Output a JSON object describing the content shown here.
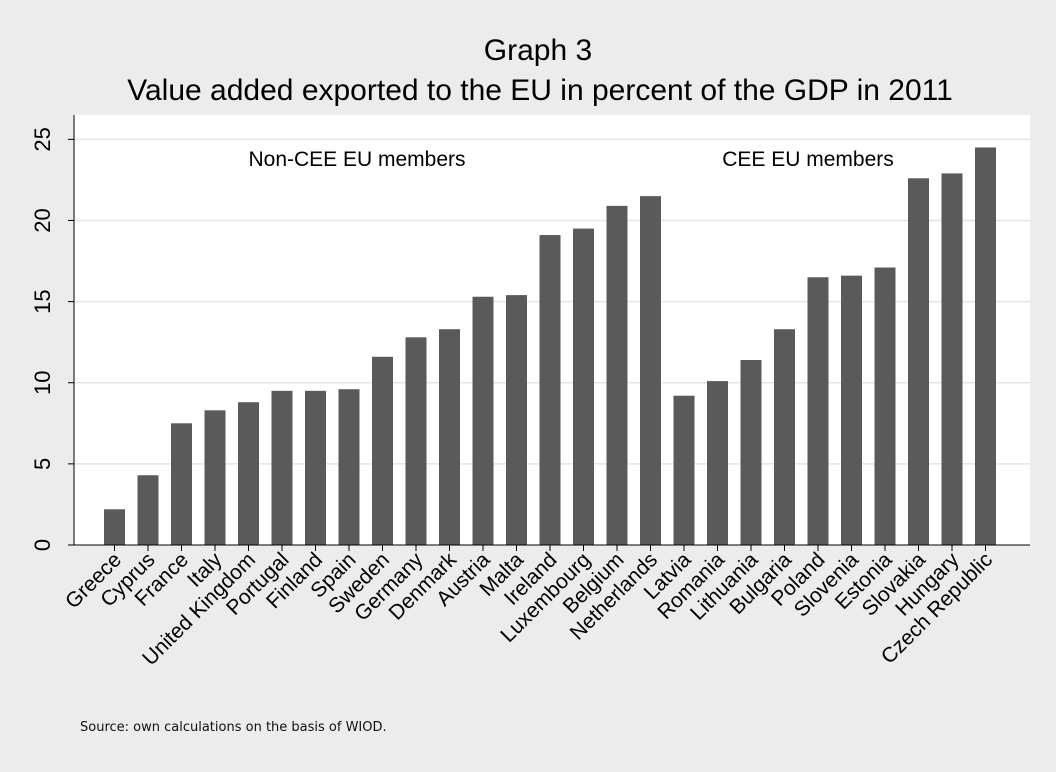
{
  "chart_data": {
    "type": "bar",
    "title": "Graph 3",
    "subtitle": "Value added exported to the EU in percent of the GDP in 2011",
    "xlabel": "",
    "ylabel": "",
    "ylim": [
      0,
      26.5
    ],
    "yticks": [
      0,
      5,
      10,
      15,
      20,
      25
    ],
    "grid": true,
    "bar_color": "#5a5a5a",
    "categories": [
      "Greece",
      "Cyprus",
      "France",
      "Italy",
      "United Kingdom",
      "Portugal",
      "Finland",
      "Spain",
      "Sweden",
      "Germany",
      "Denmark",
      "Austria",
      "Malta",
      "Ireland",
      "Luxembourg",
      "Belgium",
      "Netherlands",
      "Latvia",
      "Romania",
      "Lithuania",
      "Bulgaria",
      "Poland",
      "Slovenia",
      "Estonia",
      "Slovakia",
      "Hungary",
      "Czech Republic"
    ],
    "values": [
      2.2,
      4.3,
      7.5,
      8.3,
      8.8,
      9.5,
      9.5,
      9.6,
      11.6,
      12.8,
      13.3,
      15.3,
      15.4,
      19.1,
      19.5,
      20.9,
      21.5,
      9.2,
      10.1,
      11.4,
      13.3,
      16.5,
      16.6,
      17.1,
      22.6,
      22.9,
      24.5
    ],
    "annotations": [
      {
        "text": "Non-CEE EU members"
      },
      {
        "text": "CEE EU members"
      }
    ]
  },
  "source_note": "Source: own calculations on the basis of WIOD."
}
